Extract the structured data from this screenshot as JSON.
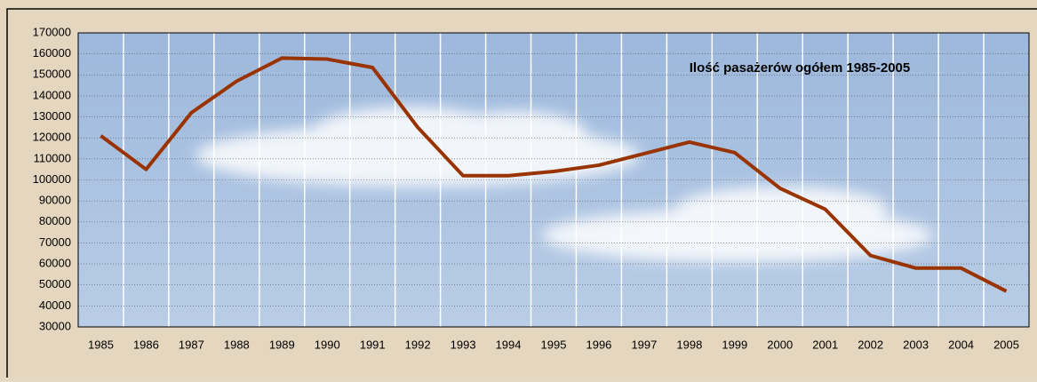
{
  "chart_data": {
    "type": "line",
    "title": "Ilość pasażerów ogółem 1985-2005",
    "categories": [
      "1985",
      "1986",
      "1987",
      "1988",
      "1989",
      "1990",
      "1991",
      "1992",
      "1993",
      "1994",
      "1995",
      "1996",
      "1997",
      "1998",
      "1999",
      "2000",
      "2001",
      "2002",
      "2003",
      "2004",
      "2005"
    ],
    "series": [
      {
        "color": "#993300",
        "values": [
          121000,
          105000,
          132000,
          147000,
          158000,
          157500,
          153500,
          125000,
          102000,
          102000,
          104000,
          107000,
          112500,
          118000,
          113000,
          96000,
          86000,
          64000,
          58000,
          58000,
          47000
        ]
      }
    ],
    "ylim": [
      30000,
      170000
    ],
    "yticks": [
      30000,
      40000,
      50000,
      60000,
      70000,
      80000,
      90000,
      100000,
      110000,
      120000,
      130000,
      140000,
      150000,
      160000,
      170000
    ],
    "grid": true
  }
}
